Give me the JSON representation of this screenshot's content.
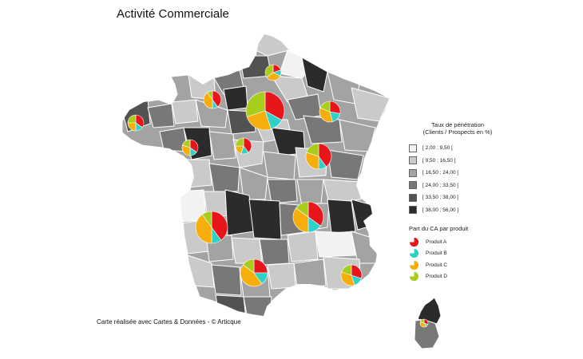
{
  "title": "Activité Commerciale",
  "credit": "Carte réalisée avec Cartes & Données - © Articque",
  "legend_penetration": {
    "title_line1": "Taux de pénétration",
    "title_line2": "(Clients / Prospects en %)",
    "classes": [
      {
        "label": "[ 2,00 ; 9,50 [",
        "color": "#f2f2f2"
      },
      {
        "label": "[ 9,50 ; 16,50 [",
        "color": "#cacaca"
      },
      {
        "label": "[ 16,50 ; 24,00 [",
        "color": "#a3a3a3"
      },
      {
        "label": "[ 24,00 ; 33,50 [",
        "color": "#787878"
      },
      {
        "label": "[ 33,50 ; 38,00 [",
        "color": "#525252"
      },
      {
        "label": "[ 38,00 ; 56,00 ]",
        "color": "#2b2b2b"
      }
    ]
  },
  "legend_products": {
    "title": "Part du CA par produit",
    "items": [
      {
        "label": "Produit A",
        "color": "#e8151b"
      },
      {
        "label": "Produit B",
        "color": "#2ed2c8"
      },
      {
        "label": "Produit C",
        "color": "#f6ae0c"
      },
      {
        "label": "Produit D",
        "color": "#a8cd1e"
      }
    ]
  },
  "pies": [
    {
      "region": "Île-de-France",
      "slices": [
        0.33,
        0.12,
        0.25,
        0.3
      ]
    },
    {
      "region": "Nord",
      "slices": [
        0.2,
        0.12,
        0.33,
        0.35
      ]
    },
    {
      "region": "Haute-Normandie",
      "slices": [
        0.4,
        0.1,
        0.4,
        0.1
      ]
    },
    {
      "region": "Bretagne",
      "slices": [
        0.35,
        0.15,
        0.25,
        0.25
      ]
    },
    {
      "region": "Pays de la Loire",
      "slices": [
        0.35,
        0.15,
        0.3,
        0.2
      ]
    },
    {
      "region": "Centre",
      "slices": [
        0.4,
        0.15,
        0.2,
        0.25
      ]
    },
    {
      "region": "Champagne-Ardenne",
      "slices": [
        0.28,
        0.18,
        0.35,
        0.19
      ]
    },
    {
      "region": "Bourgogne",
      "slices": [
        0.4,
        0.1,
        0.3,
        0.2
      ]
    },
    {
      "region": "Aquitaine",
      "slices": [
        0.4,
        0.1,
        0.4,
        0.1
      ]
    },
    {
      "region": "Rhône-Alpes",
      "slices": [
        0.35,
        0.15,
        0.35,
        0.15
      ]
    },
    {
      "region": "Midi-Pyrénées",
      "slices": [
        0.25,
        0.15,
        0.45,
        0.15
      ]
    },
    {
      "region": "Provence-Alpes-Côte d'Azur",
      "slices": [
        0.3,
        0.15,
        0.35,
        0.2
      ]
    },
    {
      "region": "Corse",
      "slices": [
        0.3,
        0.1,
        0.4,
        0.2
      ]
    }
  ]
}
